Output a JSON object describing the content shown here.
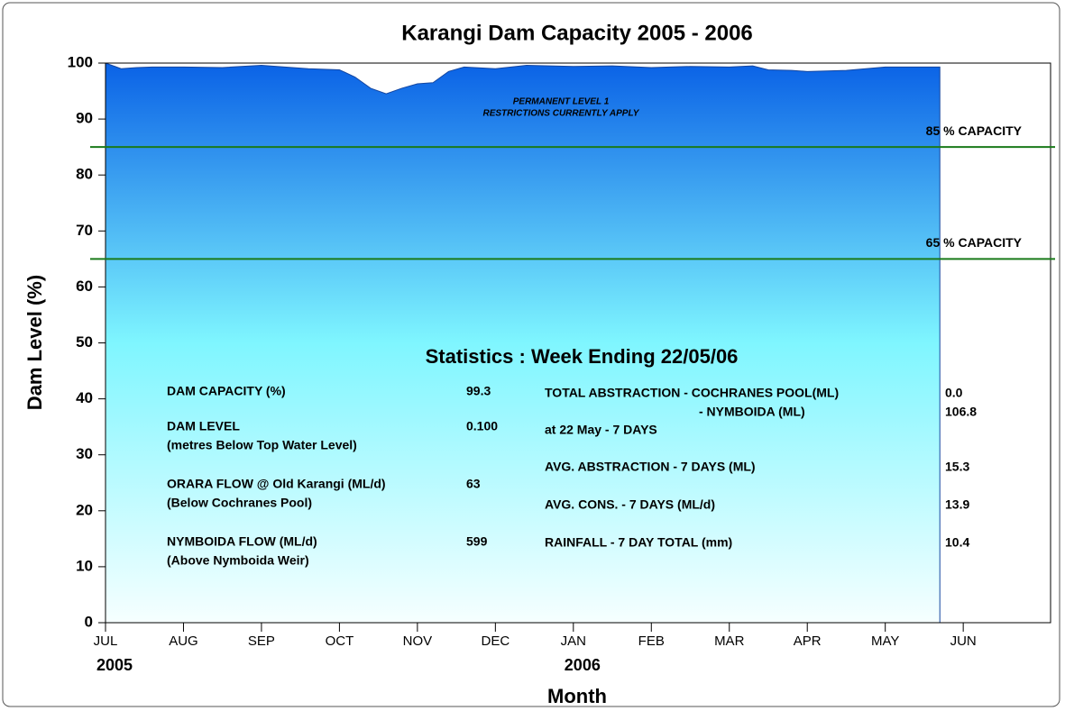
{
  "chart_data": {
    "type": "area",
    "title": "Karangi Dam Capacity 2005 - 2006",
    "x_label": "Month",
    "y_label": "Dam Level (%)",
    "xlim": [
      0,
      12.12
    ],
    "ylim": [
      0,
      100
    ],
    "xticks": [
      {
        "value": 0,
        "label": "JUL"
      },
      {
        "value": 1,
        "label": "AUG"
      },
      {
        "value": 2,
        "label": "SEP"
      },
      {
        "value": 3,
        "label": "OCT"
      },
      {
        "value": 4,
        "label": "NOV"
      },
      {
        "value": 5,
        "label": "DEC"
      },
      {
        "value": 6,
        "label": "JAN"
      },
      {
        "value": 7,
        "label": "FEB"
      },
      {
        "value": 8,
        "label": "MAR"
      },
      {
        "value": 9,
        "label": "APR"
      },
      {
        "value": 10,
        "label": "MAY"
      },
      {
        "value": 11,
        "label": "JUN"
      }
    ],
    "year_labels": [
      {
        "value": 0,
        "label": "2005"
      },
      {
        "value": 6,
        "label": "2006"
      }
    ],
    "yticks": [
      0,
      10,
      20,
      30,
      40,
      50,
      60,
      70,
      80,
      90,
      100
    ],
    "x": [
      0,
      0.1,
      0.2,
      0.4,
      0.6,
      1,
      1.5,
      2,
      2.3,
      2.6,
      3,
      3.2,
      3.4,
      3.6,
      3.8,
      4,
      4.2,
      4.4,
      4.6,
      5,
      5.4,
      6,
      6.5,
      7,
      7.5,
      8,
      8.3,
      8.5,
      8.8,
      9,
      9.5,
      10,
      10.3,
      10.7
    ],
    "series": [
      {
        "name": "Dam Level",
        "color": "#1446a0",
        "values": [
          100,
          99.5,
          99,
          99.2,
          99.3,
          99.3,
          99.2,
          99.6,
          99.3,
          99,
          98.8,
          97.5,
          95.5,
          94.5,
          95.5,
          96.3,
          96.5,
          98.5,
          99.3,
          99,
          99.6,
          99.4,
          99.5,
          99.2,
          99.4,
          99.3,
          99.5,
          98.8,
          98.7,
          98.5,
          98.7,
          99.3,
          99.3,
          99.3
        ]
      }
    ],
    "reference_lines": [
      {
        "value": 85,
        "label": "85 % CAPACITY",
        "color": "#1a7a1a"
      },
      {
        "value": 65,
        "label": "65 % CAPACITY",
        "color": "#1a7a1a"
      }
    ],
    "annotations": [
      "PERMANENT LEVEL 1",
      "RESTRICTIONS CURRENTLY APPLY"
    ],
    "statistics": {
      "title": "Statistics  :  Week Ending  22/05/06",
      "left": [
        {
          "label": "DAM CAPACITY  (%)",
          "value": "99.3"
        },
        {
          "label": "DAM LEVEL",
          "sublabel": "(metres Below Top Water Level)",
          "value": "0.100"
        },
        {
          "label": "ORARA FLOW @ Old Karangi (ML/d)",
          "sublabel": "(Below Cochranes Pool)",
          "value": "63"
        },
        {
          "label": "NYMBOIDA FLOW (ML/d)",
          "sublabel": "(Above Nymboida Weir)",
          "value": "599"
        }
      ],
      "right": [
        {
          "label": "TOTAL ABSTRACTION - COCHRANES POOL(ML)",
          "value": "0.0"
        },
        {
          "label": "- NYMBOIDA (ML)",
          "value": "106.8"
        },
        {
          "label": "at 22 May - 7 DAYS"
        },
        {
          "label": "AVG. ABSTRACTION - 7 DAYS (ML)",
          "value": "15.3"
        },
        {
          "label": "AVG. CONS. - 7 DAYS  (ML/d)",
          "value": "13.9"
        },
        {
          "label": "RAINFALL  -  7 DAY TOTAL (mm)",
          "value": "10.4"
        }
      ]
    }
  }
}
